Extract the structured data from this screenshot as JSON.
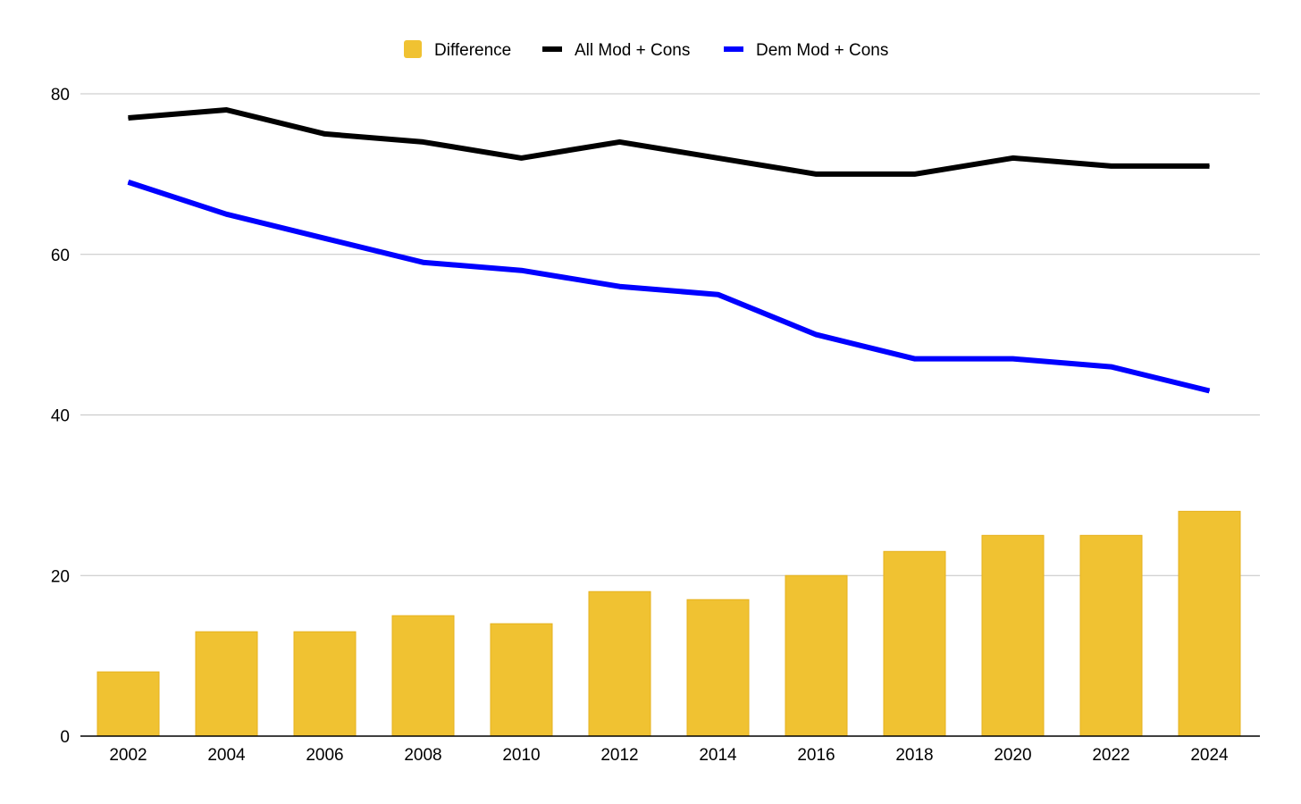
{
  "chart_data": {
    "type": "bar",
    "title": "",
    "xlabel": "",
    "ylabel": "",
    "categories": [
      "2002",
      "2004",
      "2006",
      "2008",
      "2010",
      "2012",
      "2014",
      "2016",
      "2018",
      "2020",
      "2022",
      "2024"
    ],
    "ylim": [
      0,
      80
    ],
    "yticks": [
      "0",
      "20",
      "40",
      "60",
      "80"
    ],
    "grid": true,
    "legend_position": "top-center",
    "series": [
      {
        "name": "Difference",
        "type": "bar",
        "color": "#F0C232",
        "values": [
          8,
          13,
          13,
          15,
          14,
          18,
          17,
          20,
          23,
          25,
          25,
          28
        ]
      },
      {
        "name": "All Mod + Cons",
        "type": "line",
        "color": "#000000",
        "values": [
          77,
          78,
          75,
          74,
          72,
          74,
          72,
          70,
          70,
          72,
          71,
          71
        ]
      },
      {
        "name": "Dem Mod + Cons",
        "type": "line",
        "color": "#0000FF",
        "values": [
          69,
          65,
          62,
          59,
          58,
          56,
          55,
          50,
          47,
          47,
          46,
          43
        ]
      }
    ]
  }
}
